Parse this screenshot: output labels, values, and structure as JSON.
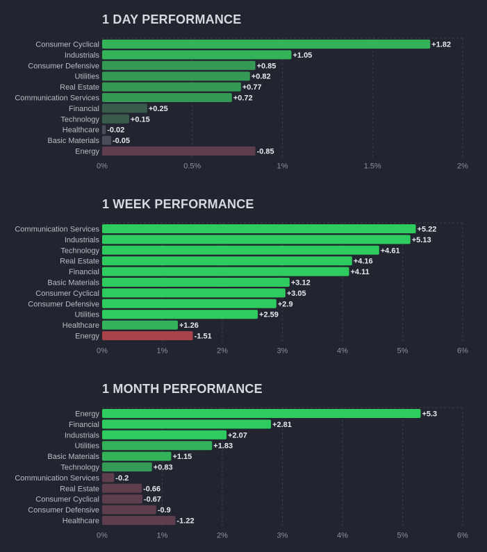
{
  "charts": {
    "day": {
      "title": "1 DAY PERFORMANCE"
    },
    "week": {
      "title": "1 WEEK PERFORMANCE"
    },
    "month": {
      "title": "1 MONTH PERFORMANCE"
    }
  },
  "colors": {
    "strong_gain": "#2ecc5f",
    "gain_2": "#34b259",
    "gain_3": "#349a56",
    "weak_gain": "#3a5a4c",
    "neutral": "#4a4c58",
    "loss_weak": "#5e3e4c",
    "loss": "#a8434c"
  },
  "chart_data": [
    {
      "id": "day",
      "type": "bar",
      "orientation": "horizontal",
      "title": "1 DAY PERFORMANCE",
      "categories": [
        "Consumer Cyclical",
        "Industrials",
        "Consumer Defensive",
        "Utilities",
        "Real Estate",
        "Communication Services",
        "Financial",
        "Technology",
        "Healthcare",
        "Basic Materials",
        "Energy"
      ],
      "values": [
        1.82,
        1.05,
        0.85,
        0.82,
        0.77,
        0.72,
        0.25,
        0.15,
        -0.02,
        -0.05,
        -0.85
      ],
      "value_labels": [
        "+1.82",
        "+1.05",
        "+0.85",
        "+0.82",
        "+0.77",
        "+0.72",
        "+0.25",
        "+0.15",
        "-0.02",
        "-0.05",
        "-0.85"
      ],
      "bar_length": "absolute value",
      "xlim": [
        0,
        2
      ],
      "xticks": [
        0,
        0.5,
        1,
        1.5,
        2
      ],
      "xtick_labels": [
        "0%",
        "0.5%",
        "1%",
        "1.5%",
        "2%"
      ],
      "grid": true
    },
    {
      "id": "week",
      "type": "bar",
      "orientation": "horizontal",
      "title": "1 WEEK PERFORMANCE",
      "categories": [
        "Communication Services",
        "Industrials",
        "Technology",
        "Real Estate",
        "Financial",
        "Basic Materials",
        "Consumer Cyclical",
        "Consumer Defensive",
        "Utilities",
        "Healthcare",
        "Energy"
      ],
      "values": [
        5.22,
        5.13,
        4.61,
        4.16,
        4.11,
        3.12,
        3.05,
        2.9,
        2.59,
        1.26,
        -1.51
      ],
      "value_labels": [
        "+5.22",
        "+5.13",
        "+4.61",
        "+4.16",
        "+4.11",
        "+3.12",
        "+3.05",
        "+2.9",
        "+2.59",
        "+1.26",
        "-1.51"
      ],
      "bar_length": "absolute value",
      "xlim": [
        0,
        6
      ],
      "xticks": [
        0,
        1,
        2,
        3,
        4,
        5,
        6
      ],
      "xtick_labels": [
        "0%",
        "1%",
        "2%",
        "3%",
        "4%",
        "5%",
        "6%"
      ],
      "grid": true
    },
    {
      "id": "month",
      "type": "bar",
      "orientation": "horizontal",
      "title": "1 MONTH PERFORMANCE",
      "categories": [
        "Energy",
        "Financial",
        "Industrials",
        "Utilities",
        "Basic Materials",
        "Technology",
        "Communication Services",
        "Real Estate",
        "Consumer Cyclical",
        "Consumer Defensive",
        "Healthcare"
      ],
      "values": [
        5.3,
        2.81,
        2.07,
        1.83,
        1.15,
        0.83,
        -0.2,
        -0.66,
        -0.67,
        -0.9,
        -1.22
      ],
      "value_labels": [
        "+5.3",
        "+2.81",
        "+2.07",
        "+1.83",
        "+1.15",
        "+0.83",
        "-0.2",
        "-0.66",
        "-0.67",
        "-0.9",
        "-1.22"
      ],
      "bar_length": "absolute value",
      "xlim": [
        0,
        6
      ],
      "xticks": [
        0,
        1,
        2,
        3,
        4,
        5,
        6
      ],
      "xtick_labels": [
        "0%",
        "1%",
        "2%",
        "3%",
        "4%",
        "5%",
        "6%"
      ],
      "grid": true
    }
  ]
}
